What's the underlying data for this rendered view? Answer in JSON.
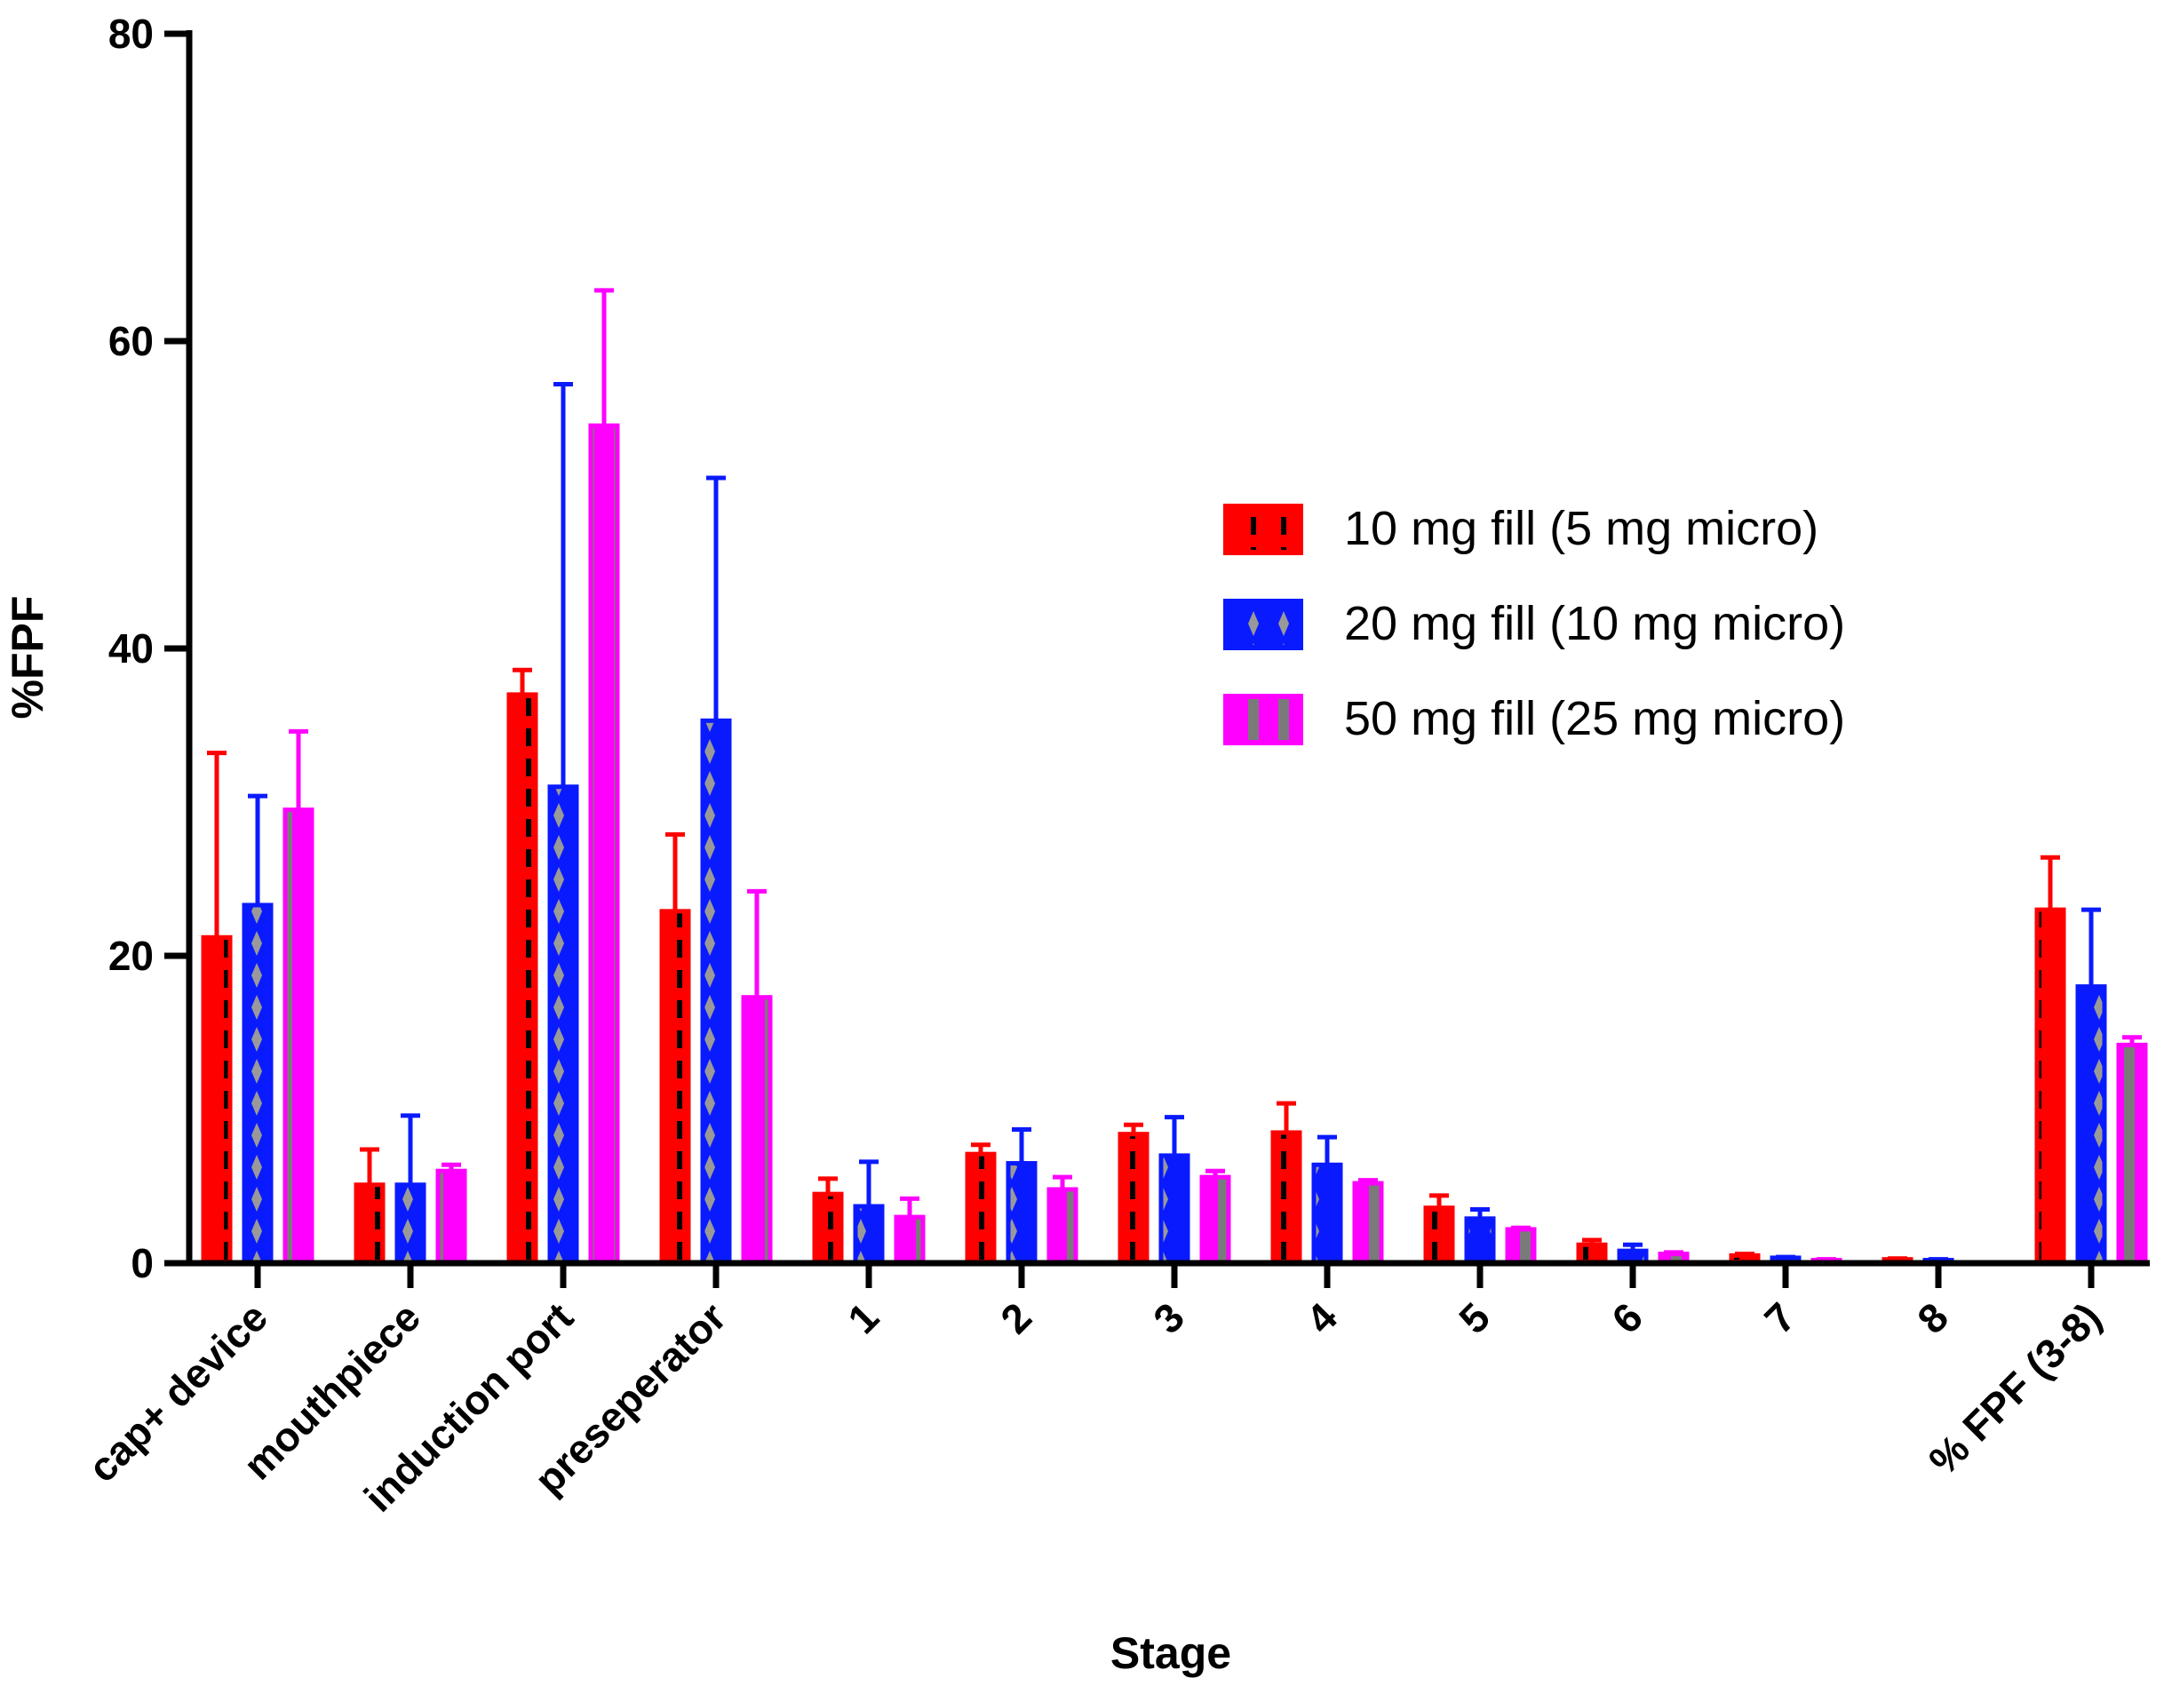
{
  "chart_data": {
    "type": "bar",
    "title": "",
    "xlabel": "Stage",
    "ylabel": "%FPF",
    "ylim": [
      0,
      80
    ],
    "yticks": [
      0,
      20,
      40,
      60,
      80
    ],
    "legend_position": "right",
    "categories": [
      "cap+ device",
      "mouthpiece",
      "induction port",
      "preseperator",
      "1",
      "2",
      "3",
      "4",
      "5",
      "6",
      "7",
      "8",
      "% FPF (3-8)"
    ],
    "series": [
      {
        "name": "10 mg fill (5 mg micro)",
        "color": "#ff0000",
        "pattern": "black-dashes",
        "values": [
          21.2,
          5.1,
          37.0,
          22.9,
          4.5,
          7.1,
          8.4,
          8.5,
          3.6,
          1.2,
          0.5,
          0.25,
          23.0
        ],
        "errors": [
          12.0,
          2.3,
          1.6,
          5.0,
          1.0,
          0.6,
          0.6,
          1.9,
          0.8,
          0.3,
          0.1,
          0.05,
          3.4
        ]
      },
      {
        "name": "20 mg fill (10 mg micro)",
        "color": "#0a1aff",
        "pattern": "grey-diamonds",
        "values": [
          23.3,
          5.1,
          31.0,
          35.3,
          3.7,
          6.5,
          7.0,
          6.4,
          2.9,
          0.8,
          0.35,
          0.2,
          18.0
        ],
        "errors": [
          7.1,
          4.5,
          26.2,
          15.8,
          2.9,
          2.2,
          2.5,
          1.8,
          0.6,
          0.4,
          0.05,
          0.05,
          5.0
        ]
      },
      {
        "name": "50 mg fill (25 mg micro)",
        "color": "#ff00ff",
        "pattern": "grey-blocks",
        "values": [
          29.5,
          6.0,
          54.5,
          17.3,
          3.0,
          4.8,
          5.6,
          5.2,
          2.2,
          0.6,
          0.2,
          0.0,
          14.2
        ],
        "errors": [
          5.1,
          0.4,
          8.8,
          6.9,
          1.2,
          0.8,
          0.4,
          0.2,
          0.1,
          0.1,
          0.05,
          0.0,
          0.5
        ]
      }
    ]
  }
}
